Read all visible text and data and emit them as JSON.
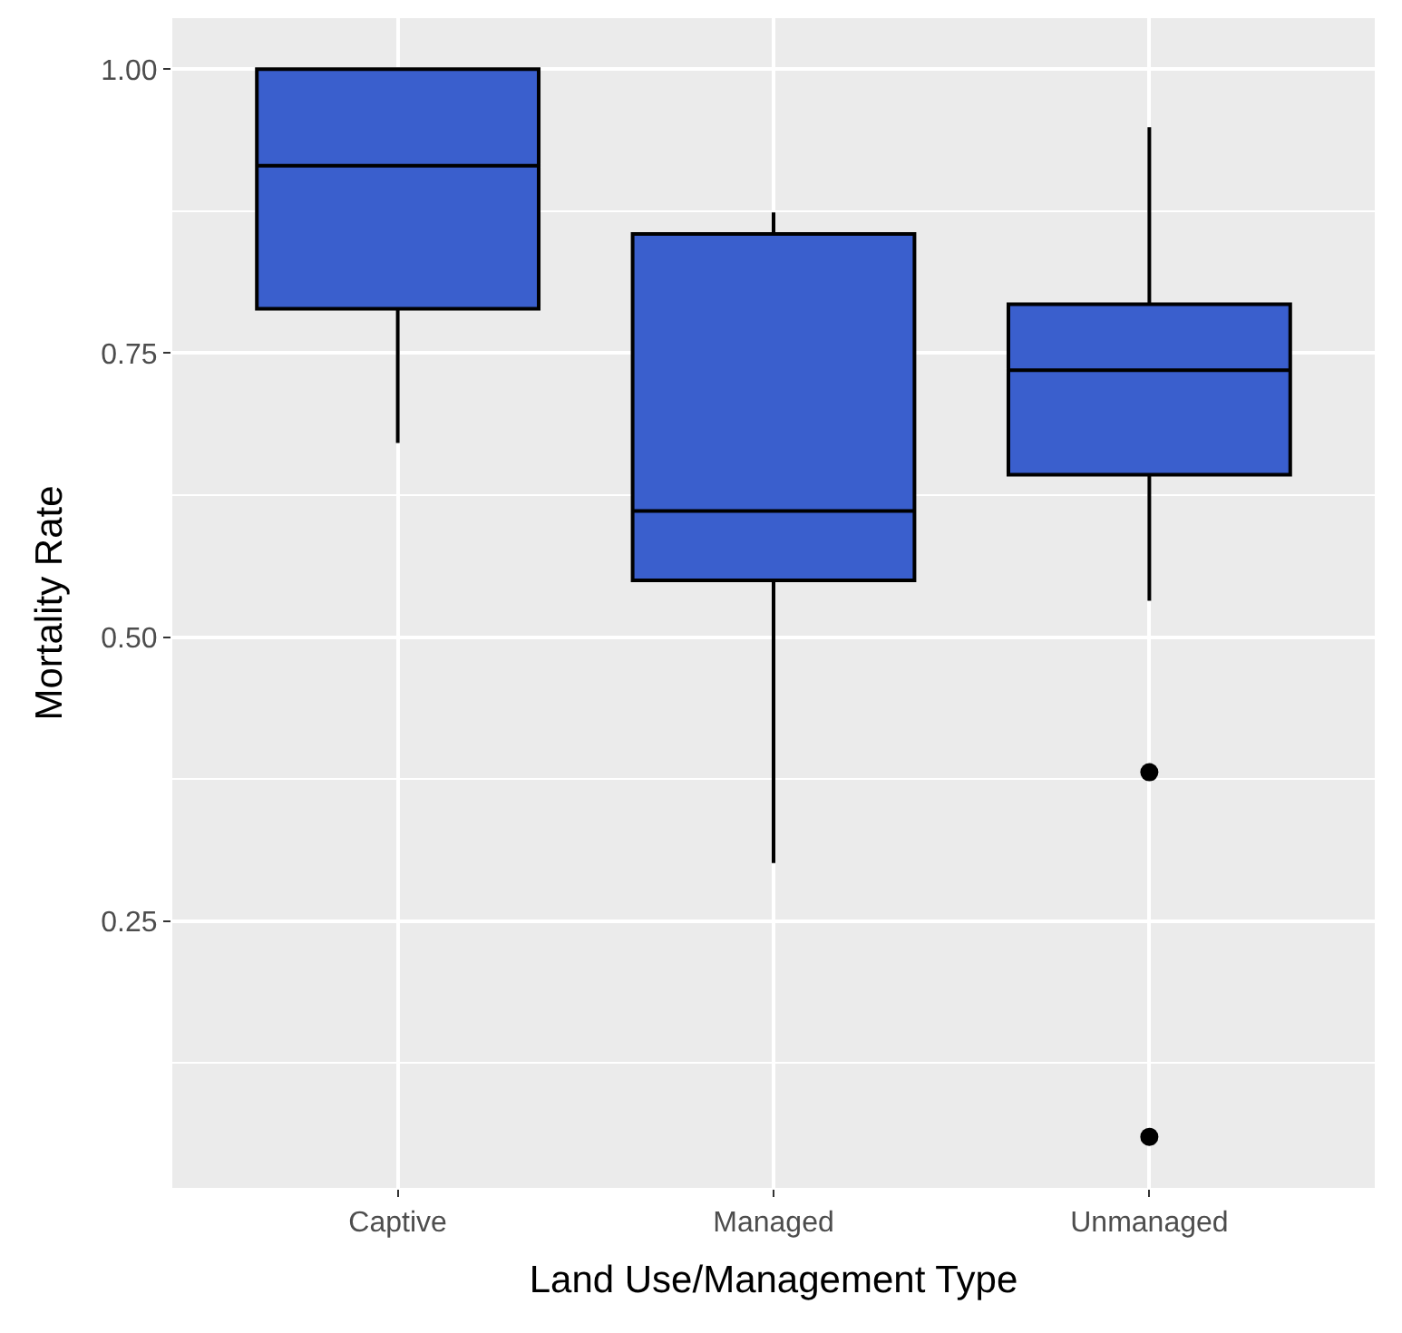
{
  "chart_data": {
    "type": "box",
    "xlabel": "Land Use/Management Type",
    "ylabel": "Mortality Rate",
    "categories": [
      "Captive",
      "Managed",
      "Unmanaged"
    ],
    "boxes": [
      {
        "low": 0.671,
        "q1": 0.789,
        "median": 0.915,
        "q3": 1.0,
        "high": 1.0
      },
      {
        "low": 0.301,
        "q1": 0.55,
        "median": 0.611,
        "q3": 0.855,
        "high": 0.874
      },
      {
        "low": 0.532,
        "q1": 0.643,
        "median": 0.735,
        "q3": 0.793,
        "high": 0.949,
        "outliers": [
          0.381,
          0.06
        ]
      }
    ],
    "color": "#3a5fcd",
    "ylim": [
      0.015,
      1.045
    ],
    "yticks": [
      {
        "value": 0.25,
        "label": "0.25"
      },
      {
        "value": 0.5,
        "label": "0.50"
      },
      {
        "value": 0.75,
        "label": "0.75"
      },
      {
        "value": 1.0,
        "label": "1.00"
      }
    ],
    "grid": true
  }
}
